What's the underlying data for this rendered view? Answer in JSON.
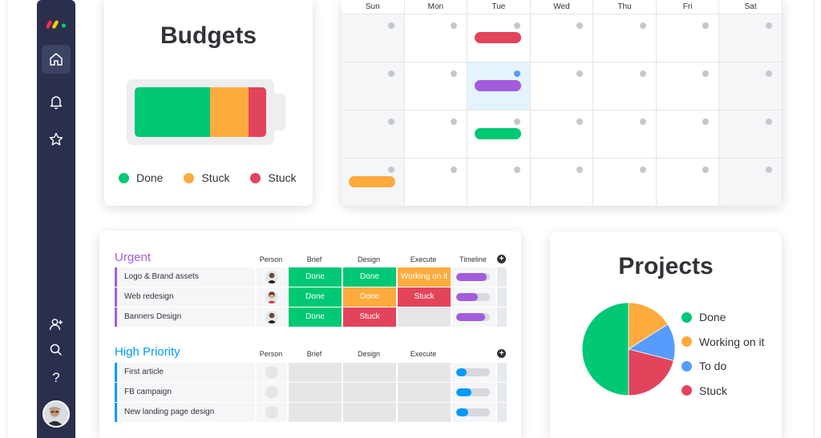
{
  "colors": {
    "done": "#00c875",
    "stuck_orange": "#fdab3d",
    "stuck_red": "#e2445c",
    "working": "#fdab3d",
    "todo": "#579bfc",
    "purple": "#a25ddc",
    "sidebar": "#292f4c",
    "urgent_title": "#a25ddc",
    "high_title": "#009aff"
  },
  "sidebar": {
    "items": [
      {
        "name": "home-icon"
      },
      {
        "name": "bell-icon"
      },
      {
        "name": "star-icon"
      },
      {
        "name": "add-user-icon"
      },
      {
        "name": "search-icon"
      },
      {
        "name": "help-icon",
        "label": "?"
      }
    ]
  },
  "budgets": {
    "title": "Budgets",
    "battery": [
      {
        "status": "Done",
        "fraction": 0.575,
        "color": "#00c875"
      },
      {
        "status": "Stuck",
        "fraction": 0.29,
        "color": "#fdab3d"
      },
      {
        "status": "Stuck",
        "fraction": 0.135,
        "color": "#e2445c"
      }
    ],
    "legend": [
      {
        "label": "Done",
        "color": "#00c875"
      },
      {
        "label": "Stuck",
        "color": "#fdab3d"
      },
      {
        "label": "Stuck",
        "color": "#e2445c"
      }
    ]
  },
  "calendar": {
    "days": [
      "Sun",
      "Mon",
      "Tue",
      "Wed",
      "Thu",
      "Fri",
      "Sat"
    ],
    "events": [
      {
        "row": 0,
        "col": 2,
        "color": "#e2445c"
      },
      {
        "row": 1,
        "col": 2,
        "color": "#a25ddc"
      },
      {
        "row": 2,
        "col": 2,
        "color": "#00c875"
      },
      {
        "row": 3,
        "col": 0,
        "color": "#fdab3d"
      }
    ]
  },
  "board": {
    "urgent": {
      "title": "Urgent",
      "columns": [
        "Person",
        "Brief",
        "Design",
        "Execute",
        "Timeline"
      ],
      "rows": [
        {
          "name": "Logo & Brand assets",
          "brief": "Done",
          "design": "Done",
          "execute": "Working on it",
          "timeline": 0.9
        },
        {
          "name": "Web redesign",
          "brief": "Done",
          "design": "Done",
          "execute": "Stuck",
          "timeline": 0.65
        },
        {
          "name": "Banners Design",
          "brief": "Done",
          "design": "Stuck",
          "execute": "",
          "timeline": 0.85
        }
      ]
    },
    "high": {
      "title": "High Priority",
      "columns": [
        "Person",
        "Brief",
        "Design",
        "Execute"
      ],
      "rows": [
        {
          "name": "First article",
          "timeline": 0.3
        },
        {
          "name": "FB campaign",
          "timeline": 0.45
        },
        {
          "name": "New landing page design",
          "timeline": 0.35
        }
      ]
    }
  },
  "projects": {
    "title": "Projects",
    "slices": [
      {
        "label": "Done",
        "value": 50,
        "color": "#00c875"
      },
      {
        "label": "Working on it",
        "value": 16,
        "color": "#fdab3d"
      },
      {
        "label": "To do",
        "value": 13,
        "color": "#579bfc"
      },
      {
        "label": "Stuck",
        "value": 21,
        "color": "#e2445c"
      }
    ]
  }
}
